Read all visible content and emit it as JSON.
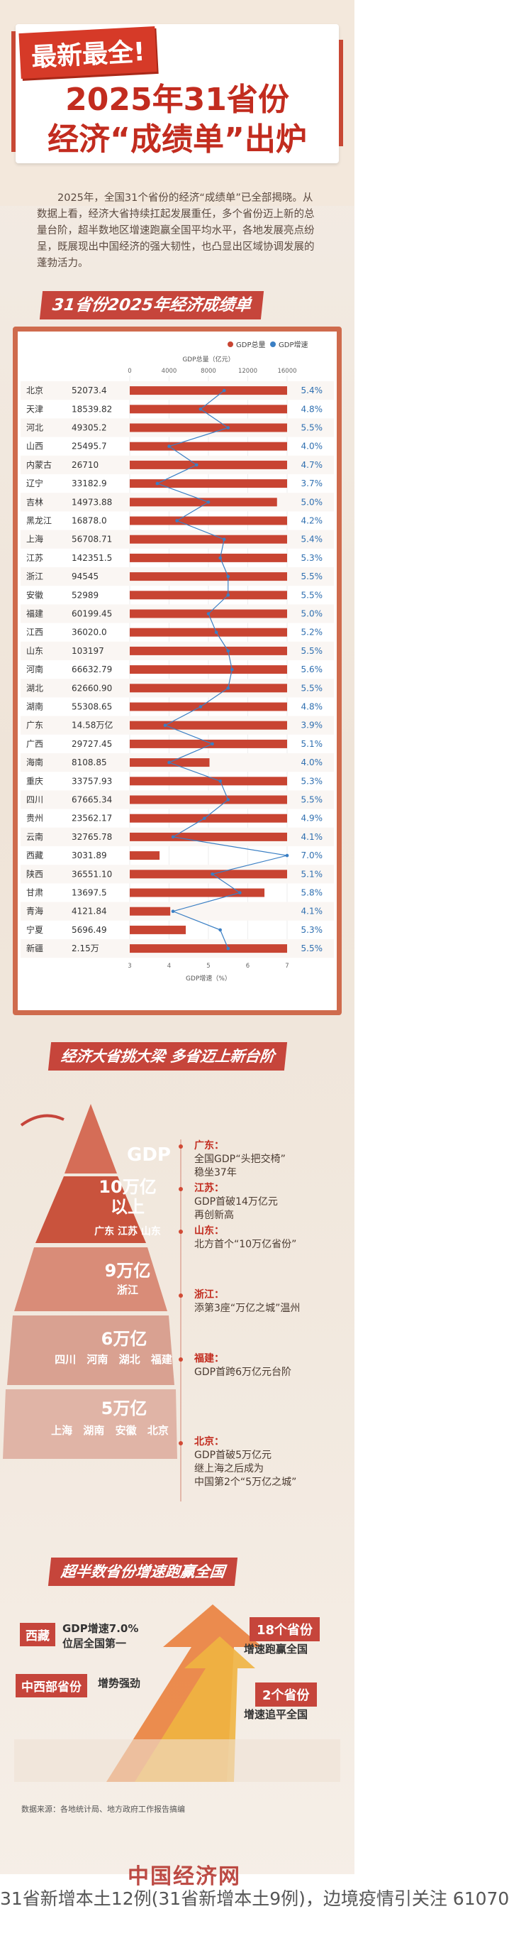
{
  "header": {
    "stamp": "最新最全!",
    "title_line1": "2025年31省份",
    "title_line2": "经济“成绩单”出炉",
    "intro": "2025年，全国31个省份的经济“成绩单”已全部揭晓。从数据上看，经济大省持续扛起发展重任，多个省份迈上新的总量台阶，超半数地区增速跑赢全国平均水平，各地发展亮点纷呈，既展现出中国经济的强大韧性，也凸显出区域协调发展的蓬勃活力。"
  },
  "chart_section": {
    "title": "31省份2025年经济成绩单"
  },
  "chart_data": {
    "type": "bar",
    "legend": [
      "GDP总量",
      "GDP增速"
    ],
    "legend_colors": [
      "#c84432",
      "#3a7fc4"
    ],
    "x_top_label": "GDP总量（亿元）",
    "x_top_ticks": [
      "0",
      "4000",
      "8000",
      "12000",
      "16000"
    ],
    "x_top_range": [
      0,
      16000
    ],
    "x_bottom_label": "GDP增速（%）",
    "x_bottom_ticks": [
      "3",
      "4",
      "5",
      "6",
      "7"
    ],
    "x_bottom_range": [
      3,
      7
    ],
    "rows": [
      {
        "name": "北京",
        "gdp_label": "52073.4",
        "gdp": 52073.4,
        "growth": 5.4
      },
      {
        "name": "天津",
        "gdp_label": "18539.82",
        "gdp": 18539.82,
        "growth": 4.8
      },
      {
        "name": "河北",
        "gdp_label": "49305.2",
        "gdp": 49305.2,
        "growth": 5.5
      },
      {
        "name": "山西",
        "gdp_label": "25495.7",
        "gdp": 25495.7,
        "growth": 4.0
      },
      {
        "name": "内蒙古",
        "gdp_label": "26710",
        "gdp": 26710,
        "growth": 4.7
      },
      {
        "name": "辽宁",
        "gdp_label": "33182.9",
        "gdp": 33182.9,
        "growth": 3.7
      },
      {
        "name": "吉林",
        "gdp_label": "14973.88",
        "gdp": 14973.88,
        "growth": 5.0
      },
      {
        "name": "黑龙江",
        "gdp_label": "16878.0",
        "gdp": 16878.0,
        "growth": 4.2
      },
      {
        "name": "上海",
        "gdp_label": "56708.71",
        "gdp": 56708.71,
        "growth": 5.4
      },
      {
        "name": "江苏",
        "gdp_label": "142351.5",
        "gdp": 142351.5,
        "growth": 5.3
      },
      {
        "name": "浙江",
        "gdp_label": "94545",
        "gdp": 94545,
        "growth": 5.5
      },
      {
        "name": "安徽",
        "gdp_label": "52989",
        "gdp": 52989,
        "growth": 5.5
      },
      {
        "name": "福建",
        "gdp_label": "60199.45",
        "gdp": 60199.45,
        "growth": 5.0
      },
      {
        "name": "江西",
        "gdp_label": "36020.0",
        "gdp": 36020.0,
        "growth": 5.2
      },
      {
        "name": "山东",
        "gdp_label": "103197",
        "gdp": 103197,
        "growth": 5.5
      },
      {
        "name": "河南",
        "gdp_label": "66632.79",
        "gdp": 66632.79,
        "growth": 5.6
      },
      {
        "name": "湖北",
        "gdp_label": "62660.90",
        "gdp": 62660.9,
        "growth": 5.5
      },
      {
        "name": "湖南",
        "gdp_label": "55308.65",
        "gdp": 55308.65,
        "growth": 4.8
      },
      {
        "name": "广东",
        "gdp_label": "14.58万亿",
        "gdp": 145800,
        "growth": 3.9
      },
      {
        "name": "广西",
        "gdp_label": "29727.45",
        "gdp": 29727.45,
        "growth": 5.1
      },
      {
        "name": "海南",
        "gdp_label": "8108.85",
        "gdp": 8108.85,
        "growth": 4.0
      },
      {
        "name": "重庆",
        "gdp_label": "33757.93",
        "gdp": 33757.93,
        "growth": 5.3
      },
      {
        "name": "四川",
        "gdp_label": "67665.34",
        "gdp": 67665.34,
        "growth": 5.5
      },
      {
        "name": "贵州",
        "gdp_label": "23562.17",
        "gdp": 23562.17,
        "growth": 4.9
      },
      {
        "name": "云南",
        "gdp_label": "32765.78",
        "gdp": 32765.78,
        "growth": 4.1
      },
      {
        "name": "西藏",
        "gdp_label": "3031.89",
        "gdp": 3031.89,
        "growth": 7.0
      },
      {
        "name": "陕西",
        "gdp_label": "36551.10",
        "gdp": 36551.1,
        "growth": 5.1
      },
      {
        "name": "甘肃",
        "gdp_label": "13697.5",
        "gdp": 13697.5,
        "growth": 5.8
      },
      {
        "name": "青海",
        "gdp_label": "4121.84",
        "gdp": 4121.84,
        "growth": 4.1
      },
      {
        "name": "宁夏",
        "gdp_label": "5696.49",
        "gdp": 5696.49,
        "growth": 5.3
      },
      {
        "name": "新疆",
        "gdp_label": "2.15万",
        "gdp": 21500,
        "growth": 5.5
      }
    ]
  },
  "pyramid_section": {
    "title": "经济大省挑大梁 多省迈上新台阶",
    "top_label": "GDP",
    "tiers": [
      {
        "level": "10万亿\n以上",
        "provinces": [
          "广东",
          "江苏",
          "山东"
        ]
      },
      {
        "level": "9万亿",
        "provinces": [
          "浙江"
        ]
      },
      {
        "level": "6万亿",
        "provinces": [
          "四川",
          "河南",
          "湖北",
          "福建"
        ]
      },
      {
        "level": "5万亿",
        "provinces": [
          "上海",
          "湖南",
          "安徽",
          "北京"
        ]
      }
    ],
    "notes": [
      {
        "head": "广东：",
        "lines": [
          "全国GDP“头把交椅”",
          "稳坐37年"
        ]
      },
      {
        "head": "江苏：",
        "lines": [
          "GDP首破14万亿元",
          "再创新高"
        ]
      },
      {
        "head": "山东：",
        "lines": [
          "北方首个“10万亿省份”"
        ]
      },
      {
        "head": "浙江：",
        "lines": [
          "添第3座“万亿之城”温州"
        ]
      },
      {
        "head": "福建：",
        "lines": [
          "GDP首跨6万亿元台阶"
        ]
      },
      {
        "head": "北京：",
        "lines": [
          "GDP首破5万亿元",
          "继上海之后成为",
          "中国第2个“5万亿之城”"
        ]
      }
    ]
  },
  "growth_section": {
    "title": "超半数省份增速跑赢全国",
    "left_items": [
      {
        "tag": "西藏",
        "text": "GDP增速7.0%\n位居全国第一"
      },
      {
        "tag": "中西部省份",
        "text": "增势强劲"
      }
    ],
    "right_items": [
      {
        "tag": "18个省份",
        "text": "增速跑赢全国"
      },
      {
        "tag": "2个省份",
        "text": "增速追平全国"
      }
    ]
  },
  "footer": {
    "source": "数据来源：各地统计局、地方政府工作报告搞编",
    "logo": "中国经济网",
    "ticker": "31省新增本土12例(31省新增本土9例)，边境疫情引关注 61070"
  },
  "colors": {
    "accent_red": "#c6453b",
    "bar_red": "#c84432",
    "line_blue": "#3a7fc4",
    "background": "#f2e9df"
  }
}
